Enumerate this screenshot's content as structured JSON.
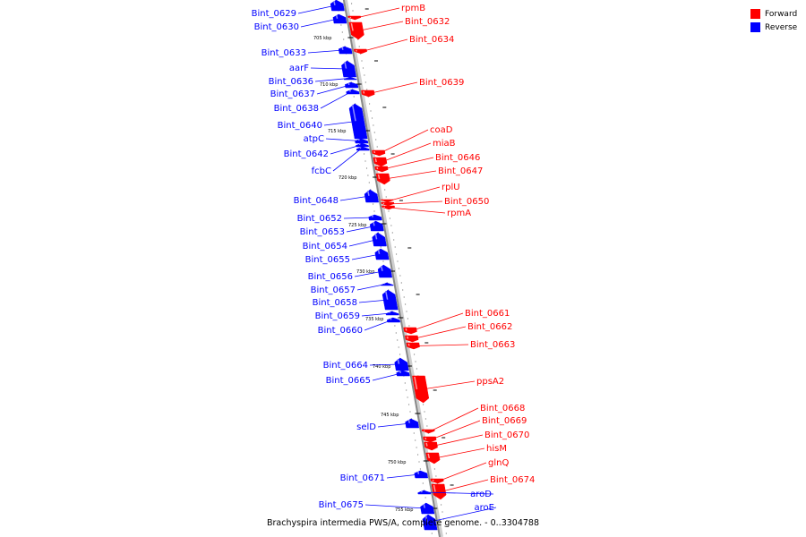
{
  "legend": [
    {
      "label": "Forward",
      "color": "#ff0000"
    },
    {
      "label": "Reverse",
      "color": "#0000ff"
    }
  ],
  "caption": "Brachyspira intermedia PWS/A, complete genome. - 0..3304788",
  "colors": {
    "forward": "#ff0000",
    "reverse": "#0000ff",
    "backbone": "#888888"
  },
  "tick_labels": [
    "705 kbp",
    "710 kbp",
    "715 kbp",
    "720 kbp",
    "725 kbp",
    "730 kbp",
    "735 kbp",
    "740 kbp",
    "745 kbp",
    "750 kbp",
    "755 kbp"
  ],
  "genes": [
    {
      "name": "Bint_0629",
      "strand": "reverse"
    },
    {
      "name": "rpmB",
      "strand": "forward"
    },
    {
      "name": "Bint_0632",
      "strand": "forward"
    },
    {
      "name": "Bint_0630",
      "strand": "reverse"
    },
    {
      "name": "Bint_0634",
      "strand": "forward"
    },
    {
      "name": "Bint_0633",
      "strand": "reverse"
    },
    {
      "name": "aarF",
      "strand": "reverse"
    },
    {
      "name": "Bint_0636",
      "strand": "reverse"
    },
    {
      "name": "Bint_0639",
      "strand": "forward"
    },
    {
      "name": "Bint_0637",
      "strand": "reverse"
    },
    {
      "name": "Bint_0638",
      "strand": "reverse"
    },
    {
      "name": "Bint_0640",
      "strand": "reverse"
    },
    {
      "name": "coaD",
      "strand": "forward"
    },
    {
      "name": "atpC",
      "strand": "reverse"
    },
    {
      "name": "miaB",
      "strand": "forward"
    },
    {
      "name": "Bint_0642",
      "strand": "reverse"
    },
    {
      "name": "Bint_0646",
      "strand": "forward"
    },
    {
      "name": "fcbC",
      "strand": "reverse"
    },
    {
      "name": "Bint_0647",
      "strand": "forward"
    },
    {
      "name": "rplU",
      "strand": "forward"
    },
    {
      "name": "Bint_0648",
      "strand": "reverse"
    },
    {
      "name": "Bint_0650",
      "strand": "forward"
    },
    {
      "name": "rpmA",
      "strand": "forward"
    },
    {
      "name": "Bint_0652",
      "strand": "reverse"
    },
    {
      "name": "Bint_0653",
      "strand": "reverse"
    },
    {
      "name": "Bint_0654",
      "strand": "reverse"
    },
    {
      "name": "Bint_0655",
      "strand": "reverse"
    },
    {
      "name": "Bint_0656",
      "strand": "reverse"
    },
    {
      "name": "Bint_0657",
      "strand": "reverse"
    },
    {
      "name": "Bint_0658",
      "strand": "reverse"
    },
    {
      "name": "Bint_0661",
      "strand": "forward"
    },
    {
      "name": "Bint_0659",
      "strand": "reverse"
    },
    {
      "name": "Bint_0662",
      "strand": "forward"
    },
    {
      "name": "Bint_0660",
      "strand": "reverse"
    },
    {
      "name": "Bint_0663",
      "strand": "forward"
    },
    {
      "name": "Bint_0664",
      "strand": "reverse"
    },
    {
      "name": "Bint_0665",
      "strand": "reverse"
    },
    {
      "name": "ppsA2",
      "strand": "forward"
    },
    {
      "name": "Bint_0668",
      "strand": "forward"
    },
    {
      "name": "Bint_0669",
      "strand": "forward"
    },
    {
      "name": "selD",
      "strand": "reverse"
    },
    {
      "name": "Bint_0670",
      "strand": "forward"
    },
    {
      "name": "hisM",
      "strand": "forward"
    },
    {
      "name": "glnQ",
      "strand": "forward"
    },
    {
      "name": "Bint_0671",
      "strand": "reverse"
    },
    {
      "name": "Bint_0674",
      "strand": "forward"
    },
    {
      "name": "aroD",
      "strand": "reverse"
    },
    {
      "name": "Bint_0675",
      "strand": "reverse"
    },
    {
      "name": "aroE",
      "strand": "reverse"
    }
  ]
}
